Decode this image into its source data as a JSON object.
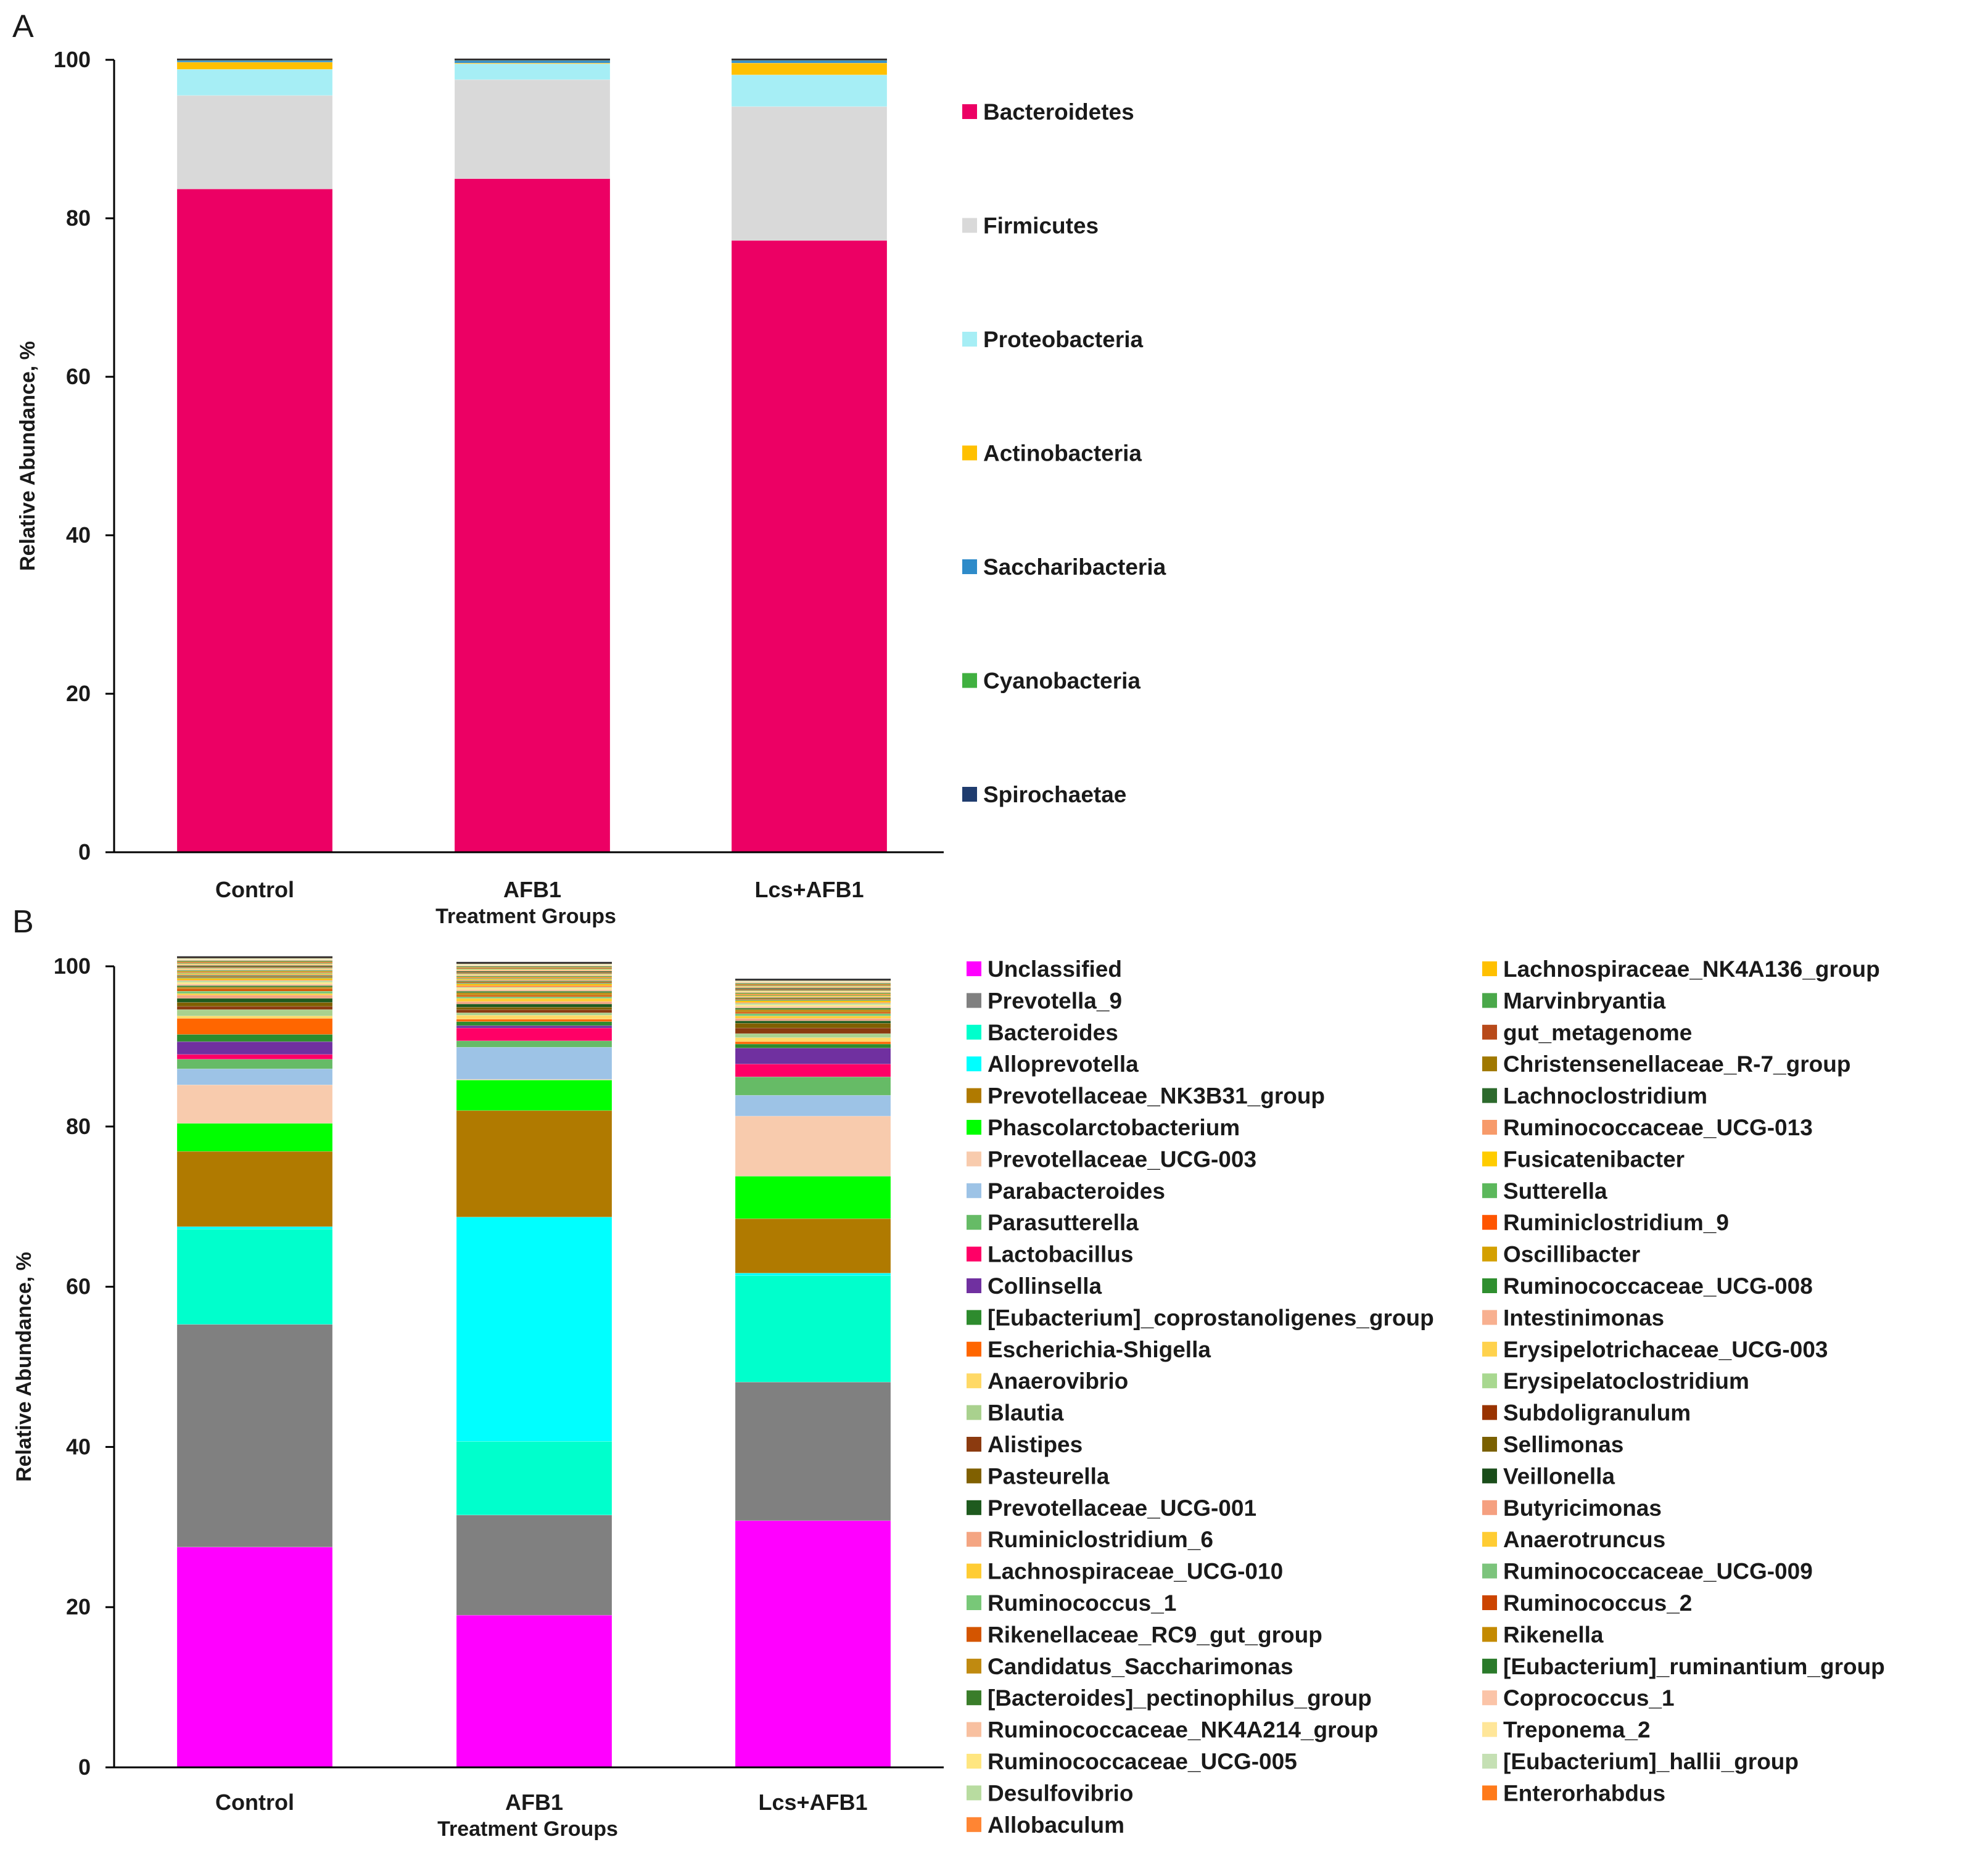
{
  "xlabel": "Treatment Groups",
  "ylabel": "Relative Abundance, %",
  "chart_data": [
    {
      "panel": "A",
      "type": "bar",
      "stacked": true,
      "title": "",
      "xlabel": "Treatment Groups",
      "ylabel": "Relative Abundance, %",
      "ylim": [
        0,
        100
      ],
      "yticks": [
        0,
        20,
        40,
        60,
        80,
        100
      ],
      "categories": [
        "Control",
        "AFB1",
        "Lcs+AFB1"
      ],
      "series": [
        {
          "name": "Bacteroidetes",
          "color": "#ec0064",
          "values": [
            83.7,
            85.0,
            77.2
          ]
        },
        {
          "name": "Firmicutes",
          "color": "#d9d9d9",
          "values": [
            11.8,
            12.5,
            16.9
          ]
        },
        {
          "name": "Proteobacteria",
          "color": "#a6eef5",
          "values": [
            3.3,
            2.0,
            4.0
          ]
        },
        {
          "name": "Actinobacteria",
          "color": "#ffc000",
          "values": [
            0.9,
            0.1,
            1.5
          ]
        },
        {
          "name": "Saccharibacteria",
          "color": "#2e8bc9",
          "values": [
            0.2,
            0.3,
            0.3
          ]
        },
        {
          "name": "Cyanobacteria",
          "color": "#40b040",
          "values": [
            0.05,
            0.05,
            0.05
          ]
        },
        {
          "name": "Spirochaetae",
          "color": "#1f3c6e",
          "values": [
            0.05,
            0.05,
            0.05
          ]
        }
      ]
    },
    {
      "panel": "B",
      "type": "bar",
      "stacked": true,
      "title": "",
      "xlabel": "Treatment Groups",
      "ylabel": "Relative Abundance, %",
      "ylim": [
        0,
        100
      ],
      "yticks": [
        0,
        20,
        40,
        60,
        80,
        100
      ],
      "categories": [
        "Control",
        "AFB1",
        "Lcs+AFB1"
      ],
      "series": [
        {
          "name": "Unclassified",
          "color": "#ff00ff",
          "values": [
            27.5,
            19.0,
            30.8
          ]
        },
        {
          "name": "Prevotella_9",
          "color": "#808080",
          "values": [
            27.8,
            12.5,
            17.3
          ]
        },
        {
          "name": "Bacteroides",
          "color": "#00ffcc",
          "values": [
            11.9,
            9.2,
            13.3
          ]
        },
        {
          "name": "Alloprevotella",
          "color": "#00ffff",
          "values": [
            0.3,
            28.0,
            0.3
          ]
        },
        {
          "name": "Prevotellaceae_NK3B31_group",
          "color": "#b07a00",
          "values": [
            9.4,
            13.3,
            6.8
          ]
        },
        {
          "name": "Phascolarctobacterium",
          "color": "#00ff00",
          "values": [
            3.5,
            3.8,
            5.3
          ]
        },
        {
          "name": "Prevotellaceae_UCG-003",
          "color": "#f8cbad",
          "values": [
            4.8,
            0.1,
            7.5
          ]
        },
        {
          "name": "Parabacteroides",
          "color": "#9dc3e6",
          "values": [
            2.0,
            4.0,
            2.6
          ]
        },
        {
          "name": "Parasutterella",
          "color": "#66bb66",
          "values": [
            1.2,
            0.8,
            2.3
          ]
        },
        {
          "name": "Lactobacillus",
          "color": "#ff0066",
          "values": [
            0.6,
            1.6,
            1.6
          ]
        },
        {
          "name": "Collinsella",
          "color": "#7030a0",
          "values": [
            1.6,
            0.3,
            2.0
          ]
        },
        {
          "name": "[Eubacterium]_coprostanoligenes_group",
          "color": "#2e8b2e",
          "values": [
            0.9,
            0.5,
            0.5
          ]
        },
        {
          "name": "Escherichia-Shigella",
          "color": "#ff6600",
          "values": [
            2.0,
            0.3,
            0.3
          ]
        },
        {
          "name": "Anaerovibrio",
          "color": "#ffd966",
          "values": [
            0.3,
            0.5,
            0.5
          ]
        },
        {
          "name": "Blautia",
          "color": "#a9d18e",
          "values": [
            0.8,
            0.3,
            0.5
          ]
        },
        {
          "name": "Alistipes",
          "color": "#8b3a0f",
          "values": [
            0.4,
            0.4,
            0.7
          ]
        },
        {
          "name": "Pasteurella",
          "color": "#806000",
          "values": [
            0.5,
            0.3,
            0.6
          ]
        },
        {
          "name": "Prevotellaceae_UCG-001",
          "color": "#1e5a1e",
          "values": [
            0.5,
            0.4,
            0.3
          ]
        },
        {
          "name": "Ruminiclostridium_6",
          "color": "#f4a582",
          "values": [
            0.4,
            0.3,
            0.3
          ]
        },
        {
          "name": "Lachnospiraceae_UCG-010",
          "color": "#ffcc33",
          "values": [
            0.2,
            0.4,
            0.3
          ]
        },
        {
          "name": "Ruminococcus_1",
          "color": "#78c878",
          "values": [
            0.3,
            0.2,
            0.3
          ]
        },
        {
          "name": "Rikenellaceae_RC9_gut_group",
          "color": "#d45500",
          "values": [
            0.3,
            0.2,
            0.2
          ]
        },
        {
          "name": "Candidatus_Saccharimonas",
          "color": "#c08a10",
          "values": [
            0.2,
            0.3,
            0.3
          ]
        },
        {
          "name": "[Bacteroides]_pectinophilus_group",
          "color": "#3a7d2a",
          "values": [
            0.2,
            0.2,
            0.2
          ]
        },
        {
          "name": "Ruminococcaceae_NK4A214_group",
          "color": "#f8c0a0",
          "values": [
            0.2,
            0.2,
            0.2
          ]
        },
        {
          "name": "Ruminococcaceae_UCG-005",
          "color": "#ffe680",
          "values": [
            0.2,
            0.2,
            0.2
          ]
        },
        {
          "name": "Desulfovibrio",
          "color": "#b8dca0",
          "values": [
            0.2,
            0.1,
            0.2
          ]
        },
        {
          "name": "Allobaculum",
          "color": "#ff8533",
          "values": [
            0.1,
            0.2,
            0.1
          ]
        },
        {
          "name": "Lachnospiraceae_NK4A136_group",
          "color": "#ffc000",
          "values": [
            0.2,
            0.2,
            0.2
          ]
        },
        {
          "name": "Marvinbryantia",
          "color": "#4aa84a",
          "values": [
            0.1,
            0.1,
            0.1
          ]
        },
        {
          "name": "gut_metagenome",
          "color": "#b84a1a",
          "values": [
            0.1,
            0.1,
            0.1
          ]
        },
        {
          "name": "Christensenellaceae_R-7_group",
          "color": "#a07800",
          "values": [
            0.1,
            0.1,
            0.1
          ]
        },
        {
          "name": "Lachnoclostridium",
          "color": "#2d6a2d",
          "values": [
            0.1,
            0.1,
            0.1
          ]
        },
        {
          "name": "Ruminococcaceae_UCG-013",
          "color": "#f79a6a",
          "values": [
            0.1,
            0.1,
            0.1
          ]
        },
        {
          "name": "Fusicatenibacter",
          "color": "#ffcc00",
          "values": [
            0.1,
            0.1,
            0.1
          ]
        },
        {
          "name": "Sutterella",
          "color": "#5cb85c",
          "values": [
            0.1,
            0.1,
            0.1
          ]
        },
        {
          "name": "Ruminiclostridium_9",
          "color": "#ff5500",
          "values": [
            0.1,
            0.1,
            0.1
          ]
        },
        {
          "name": "Oscillibacter",
          "color": "#d4a000",
          "values": [
            0.1,
            0.1,
            0.1
          ]
        },
        {
          "name": "Ruminococcaceae_UCG-008",
          "color": "#2f8f2f",
          "values": [
            0.1,
            0.1,
            0.1
          ]
        },
        {
          "name": "Intestinimonas",
          "color": "#f8b090",
          "values": [
            0.1,
            0.1,
            0.1
          ]
        },
        {
          "name": "Erysipelotrichaceae_UCG-003",
          "color": "#ffd24d",
          "values": [
            0.1,
            0.1,
            0.1
          ]
        },
        {
          "name": "Erysipelatoclostridium",
          "color": "#a8d890",
          "values": [
            0.1,
            0.1,
            0.1
          ]
        },
        {
          "name": "Subdoligranulum",
          "color": "#993300",
          "values": [
            0.1,
            0.1,
            0.1
          ]
        },
        {
          "name": "Sellimonas",
          "color": "#7a6000",
          "values": [
            0.1,
            0.1,
            0.1
          ]
        },
        {
          "name": "Veillonella",
          "color": "#1a4d1a",
          "values": [
            0.1,
            0.1,
            0.1
          ]
        },
        {
          "name": "Butyricimonas",
          "color": "#f5a080",
          "values": [
            0.1,
            0.1,
            0.1
          ]
        },
        {
          "name": "Anaerotruncus",
          "color": "#ffcc33",
          "values": [
            0.1,
            0.1,
            0.1
          ]
        },
        {
          "name": "Ruminococcaceae_UCG-009",
          "color": "#7cc47c",
          "values": [
            0.1,
            0.1,
            0.1
          ]
        },
        {
          "name": "Ruminococcus_2",
          "color": "#cc4400",
          "values": [
            0.1,
            0.1,
            0.1
          ]
        },
        {
          "name": "Rikenella",
          "color": "#c48a00",
          "values": [
            0.1,
            0.1,
            0.1
          ]
        },
        {
          "name": "[Eubacterium]_ruminantium_group",
          "color": "#2a7a2a",
          "values": [
            0.1,
            0.1,
            0.1
          ]
        },
        {
          "name": "Coprococcus_1",
          "color": "#fbc4a8",
          "values": [
            0.1,
            0.1,
            0.1
          ]
        },
        {
          "name": "Treponema_2",
          "color": "#ffe699",
          "values": [
            0.1,
            0.1,
            0.1
          ]
        },
        {
          "name": "[Eubacterium]_hallii_group",
          "color": "#c5e0b4",
          "values": [
            0.1,
            0.1,
            0.1
          ]
        },
        {
          "name": "Enterorhabdus",
          "color": "#ff7a1a",
          "values": [
            0.1,
            0.1,
            0.1
          ]
        }
      ]
    }
  ]
}
